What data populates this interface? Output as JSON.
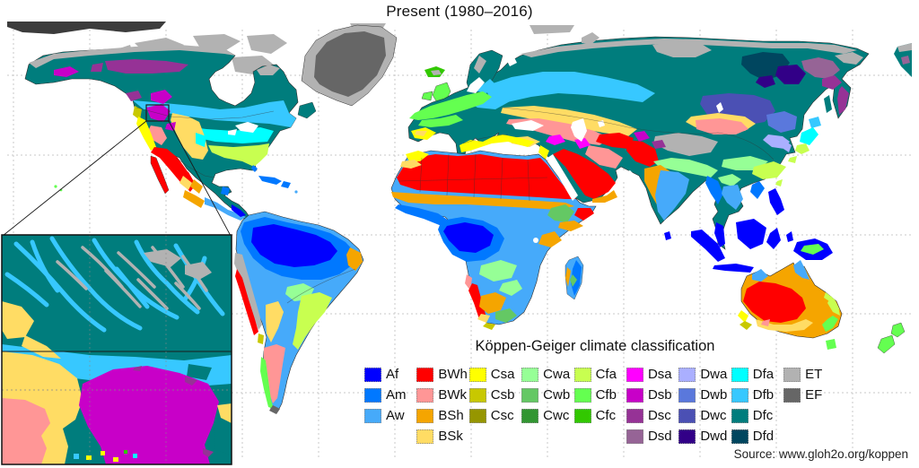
{
  "title": "Present (1980–2016)",
  "legend_title": "Köppen-Geiger climate classification",
  "source": "Source: www.gloh2o.org/koppen",
  "legend_columns": [
    [
      "Af",
      "Am",
      "Aw"
    ],
    [
      "BWh",
      "BWk",
      "BSh",
      "BSk"
    ],
    [
      "Csa",
      "Csb",
      "Csc"
    ],
    [
      "Cwa",
      "Cwb",
      "Cwc"
    ],
    [
      "Cfa",
      "Cfb",
      "Cfc"
    ],
    [
      "Dsa",
      "Dsb",
      "Dsc",
      "Dsd"
    ],
    [
      "Dwa",
      "Dwb",
      "Dwc",
      "Dwd"
    ],
    [
      "Dfa",
      "Dfb",
      "Dfc",
      "Dfd"
    ],
    [
      "ET",
      "EF"
    ]
  ],
  "colors": {
    "Af": "#0000FF",
    "Am": "#0078FF",
    "Aw": "#46AAFA",
    "BWh": "#FF0000",
    "BWk": "#FF9696",
    "BSh": "#F5A500",
    "BSk": "#FFDC64",
    "Csa": "#FFFF00",
    "Csb": "#C8C800",
    "Csc": "#969600",
    "Cwa": "#96FF96",
    "Cwb": "#64C864",
    "Cwc": "#329632",
    "Cfa": "#C8FF50",
    "Cfb": "#64FF50",
    "Cfc": "#32C800",
    "Dsa": "#FF00FF",
    "Dsb": "#C800C8",
    "Dsc": "#963296",
    "Dsd": "#966496",
    "Dwa": "#AAAFFF",
    "Dwb": "#5A78DC",
    "Dwc": "#4B50B4",
    "Dwd": "#320087",
    "Dfa": "#00FFFF",
    "Dfb": "#37C8FF",
    "Dfc": "#007D7D",
    "Dfd": "#00465F",
    "ET": "#B2B2B2",
    "EF": "#666666",
    "ocean": "#FFFFFF",
    "grid": "#C8C8C8",
    "outline": "#2F2F2F",
    "edge_dark": "#3C3C3C"
  }
}
